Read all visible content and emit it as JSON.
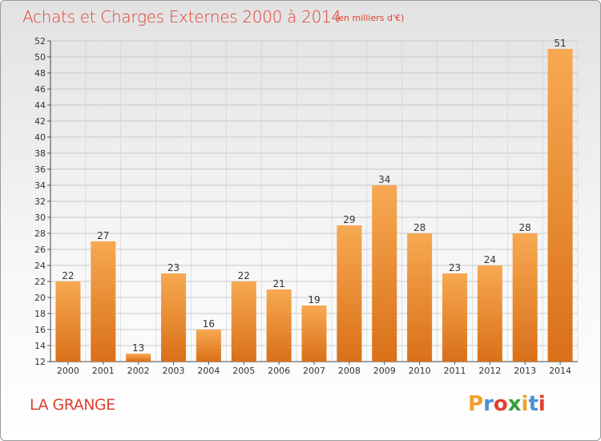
{
  "header": {
    "title": "Achats et Charges Externes 2000 à 2014",
    "subtitle": "(en milliers d'€)"
  },
  "footer": {
    "commune": "LA GRANGE",
    "logo_text": "Proxiti",
    "logo_colors": [
      "#f0a22a",
      "#4a8fd6",
      "#e0402f",
      "#3a9e3a",
      "#f0a22a",
      "#4a8fd6",
      "#e0402f"
    ]
  },
  "chart_data": {
    "type": "bar",
    "title": "Achats et Charges Externes 2000 à 2014",
    "subtitle": "(en milliers d'€)",
    "categories": [
      "2000",
      "2001",
      "2002",
      "2003",
      "2004",
      "2005",
      "2006",
      "2007",
      "2008",
      "2009",
      "2010",
      "2011",
      "2012",
      "2013",
      "2014"
    ],
    "values": [
      22,
      27,
      13,
      23,
      16,
      22,
      21,
      19,
      29,
      34,
      28,
      23,
      24,
      28,
      51
    ],
    "ylim": [
      12,
      52
    ],
    "yticks": [
      12,
      14,
      16,
      18,
      20,
      22,
      24,
      26,
      28,
      30,
      32,
      34,
      36,
      38,
      40,
      42,
      44,
      46,
      48,
      50,
      52
    ],
    "grid": true,
    "bar_color": "#f0943a",
    "bar_color_light": "#f7a952",
    "bar_color_dark": "#d97018"
  }
}
